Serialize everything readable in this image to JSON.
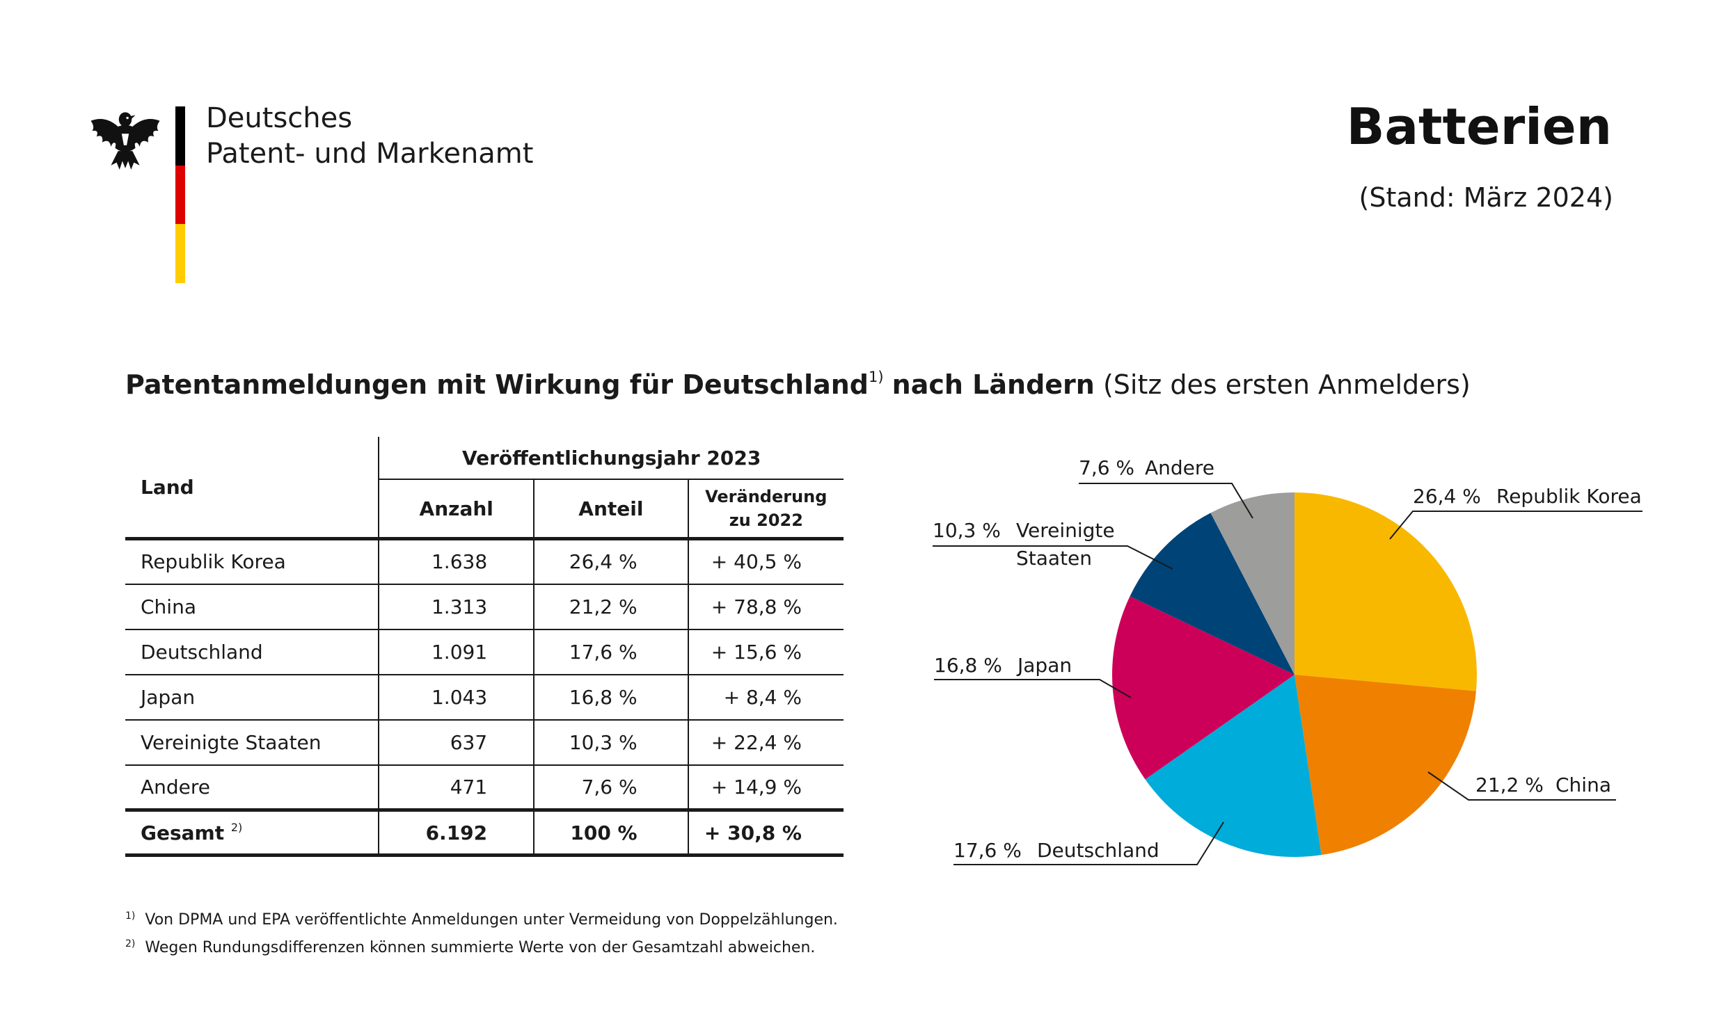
{
  "header": {
    "agency_line1": "Deutsches",
    "agency_line2": "Patent- und Markenamt",
    "title": "Batterien",
    "date": "(Stand: März 2024)",
    "flag_colors": [
      "#000000",
      "#dd0000",
      "#ffcc00"
    ],
    "emblem_icon": "federal-eagle-icon"
  },
  "subtitle": {
    "bold_part1": "Patentanmeldungen mit Wirkung für Deutschland",
    "footnote_ref": "1)",
    "bold_part2": "nach Ländern",
    "normal_part": "(Sitz des ersten Anmelders)"
  },
  "table": {
    "col_land": "Land",
    "group_header": "Veröffentlichungsjahr 2023",
    "col_count": "Anzahl",
    "col_share": "Anteil",
    "col_change_line1": "Veränderung",
    "col_change_line2": "zu 2022",
    "rows": [
      {
        "land": "Republik Korea",
        "count": "1.638",
        "share": "26,4 %",
        "change": "+ 40,5 %"
      },
      {
        "land": "China",
        "count": "1.313",
        "share": "21,2 %",
        "change": "+ 78,8 %"
      },
      {
        "land": "Deutschland",
        "count": "1.091",
        "share": "17,6 %",
        "change": "+ 15,6 %"
      },
      {
        "land": "Japan",
        "count": "1.043",
        "share": "16,8 %",
        "change": "+ 8,4 %"
      },
      {
        "land": "Vereinigte Staaten",
        "count": "637",
        "share": "10,3 %",
        "change": "+ 22,4 %"
      },
      {
        "land": "Andere",
        "count": "471",
        "share": "7,6 %",
        "change": "+ 14,9 %"
      }
    ],
    "total": {
      "land": "Gesamt",
      "footnote_ref": "2)",
      "count": "6.192",
      "share": "100 %",
      "change": "+ 30,8 %"
    }
  },
  "footnotes": [
    {
      "ref": "1)",
      "text": "Von DPMA und EPA veröffentlichte Anmeldungen unter Vermeidung von Doppelzählungen."
    },
    {
      "ref": "2)",
      "text": "Wegen Rundungsdifferenzen können summierte Werte von der Gesamtzahl abweichen."
    }
  ],
  "chart_data": {
    "type": "pie",
    "title": "",
    "slices": [
      {
        "label": "Republik Korea",
        "value": 26.4,
        "value_label": "26,4 %",
        "color": "#f9b800"
      },
      {
        "label": "China",
        "value": 21.2,
        "value_label": "21,2 %",
        "color": "#f08000"
      },
      {
        "label": "Deutschland",
        "value": 17.6,
        "value_label": "17,6 %",
        "color": "#00acd9"
      },
      {
        "label": "Japan",
        "value": 16.8,
        "value_label": "16,8 %",
        "color": "#cc0058"
      },
      {
        "label": "Vereinigte Staaten",
        "label_lines": [
          "Vereinigte",
          "Staaten"
        ],
        "value": 10.3,
        "value_label": "10,3 %",
        "color": "#004377"
      },
      {
        "label": "Andere",
        "value": 7.6,
        "value_label": "7,6 %",
        "color": "#9d9d9c"
      }
    ],
    "start": "12 o'clock",
    "direction": "clockwise"
  }
}
